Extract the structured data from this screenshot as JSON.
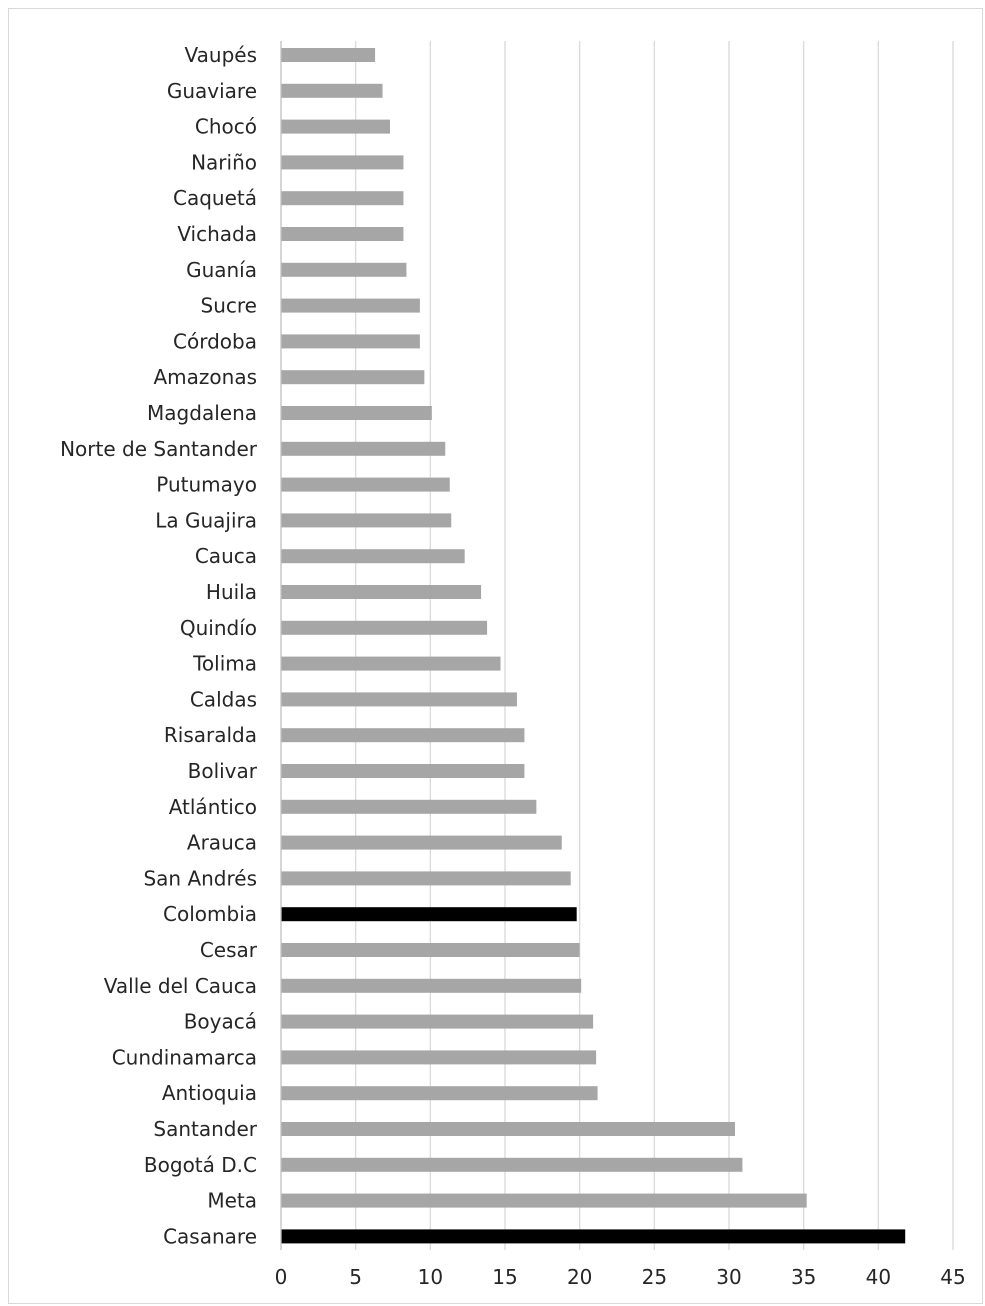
{
  "chart_data": {
    "type": "bar",
    "orientation": "horizontal",
    "categories": [
      "Vaupés",
      "Guaviare",
      "Chocó",
      "Nariño",
      "Caquetá",
      "Vichada",
      "Guanía",
      "Sucre",
      "Córdoba",
      "Amazonas",
      "Magdalena",
      "Norte de Santander",
      "Putumayo",
      "La Guajira",
      "Cauca",
      "Huila",
      "Quindío",
      "Tolima",
      "Caldas",
      "Risaralda",
      "Bolivar",
      "Atlántico",
      "Arauca",
      "San Andrés",
      "Colombia",
      "Cesar",
      "Valle del Cauca",
      "Boyacá",
      "Cundinamarca",
      "Antioquia",
      "Santander",
      "Bogotá D.C",
      "Meta",
      "Casanare"
    ],
    "values": [
      6.3,
      6.8,
      7.3,
      8.2,
      8.2,
      8.2,
      8.4,
      9.3,
      9.3,
      9.6,
      10.1,
      11.0,
      11.3,
      11.4,
      12.3,
      13.4,
      13.8,
      14.7,
      15.8,
      16.3,
      16.3,
      17.1,
      18.8,
      19.4,
      19.8,
      20.0,
      20.1,
      20.9,
      21.1,
      21.2,
      30.4,
      30.9,
      35.2,
      41.8
    ],
    "highlighted": [
      "Colombia",
      "Casanare"
    ],
    "xlim": [
      0,
      45
    ],
    "xticks": [
      0,
      5,
      10,
      15,
      20,
      25,
      30,
      35,
      40,
      45
    ],
    "grid": "vertical",
    "legend": "none",
    "title": "",
    "xlabel": "",
    "ylabel": "",
    "colors": {
      "bar": "#a6a6a6",
      "highlight": "#000000",
      "grid": "#d9d9d9",
      "text": "#262626"
    }
  }
}
